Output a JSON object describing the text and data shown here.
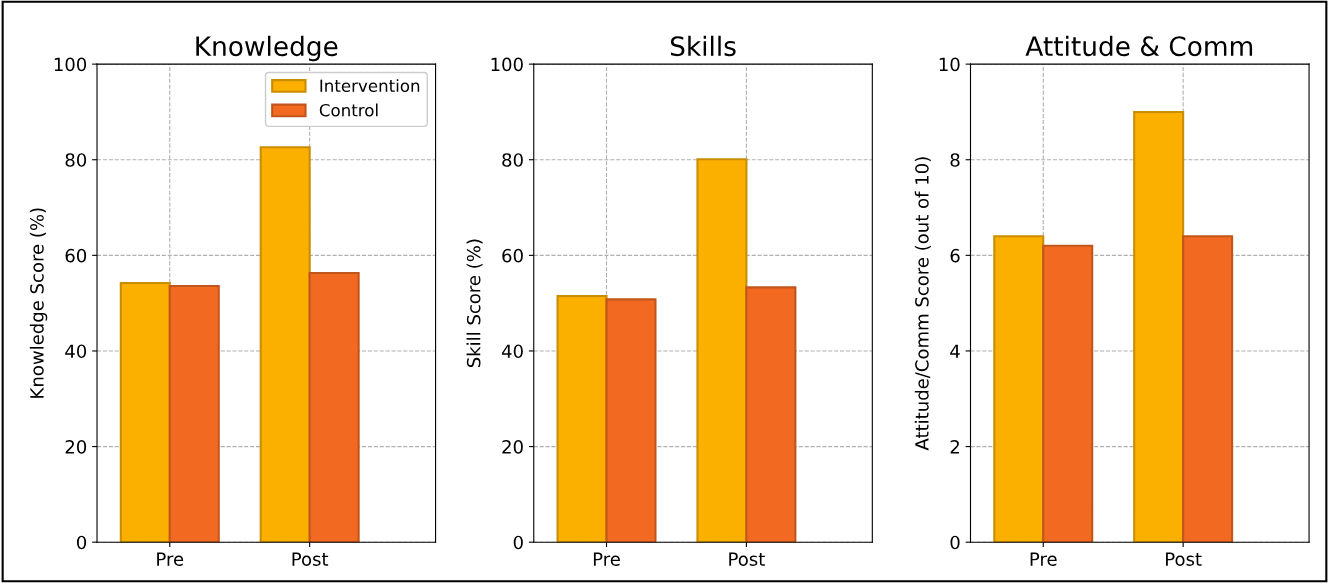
{
  "chart_data": [
    {
      "type": "bar",
      "title": "Knowledge",
      "ylabel": "Knowledge Score (%)",
      "categories": [
        "Pre",
        "Post"
      ],
      "ylim": [
        0,
        100
      ],
      "yticks": [
        0,
        20,
        40,
        60,
        80,
        100
      ],
      "grid": true,
      "legend": "top right",
      "series": [
        {
          "name": "Intervention",
          "color": "#fbb000",
          "values": [
            54.2,
            82.6
          ]
        },
        {
          "name": "Control",
          "color": "#f26a22",
          "values": [
            53.6,
            56.3
          ]
        }
      ]
    },
    {
      "type": "bar",
      "title": "Skills",
      "ylabel": "Skill Score (%)",
      "categories": [
        "Pre",
        "Post"
      ],
      "ylim": [
        0,
        100
      ],
      "yticks": [
        0,
        20,
        40,
        60,
        80,
        100
      ],
      "grid": true,
      "series": [
        {
          "color": "#fbb000",
          "values": [
            51.5,
            80.1
          ]
        },
        {
          "color": "#f26a22",
          "values": [
            50.8,
            53.3
          ]
        }
      ]
    },
    {
      "type": "bar",
      "title": "Attitude & Comm",
      "ylabel": "Attitude/Comm Score (out of 10)",
      "categories": [
        "Pre",
        "Post"
      ],
      "ylim": [
        0,
        10
      ],
      "yticks": [
        0,
        2,
        4,
        6,
        8,
        10
      ],
      "grid": true,
      "series": [
        {
          "color": "#fbb000",
          "values": [
            6.4,
            9.0
          ]
        },
        {
          "color": "#f26a22",
          "values": [
            6.2,
            6.4
          ]
        }
      ]
    }
  ]
}
